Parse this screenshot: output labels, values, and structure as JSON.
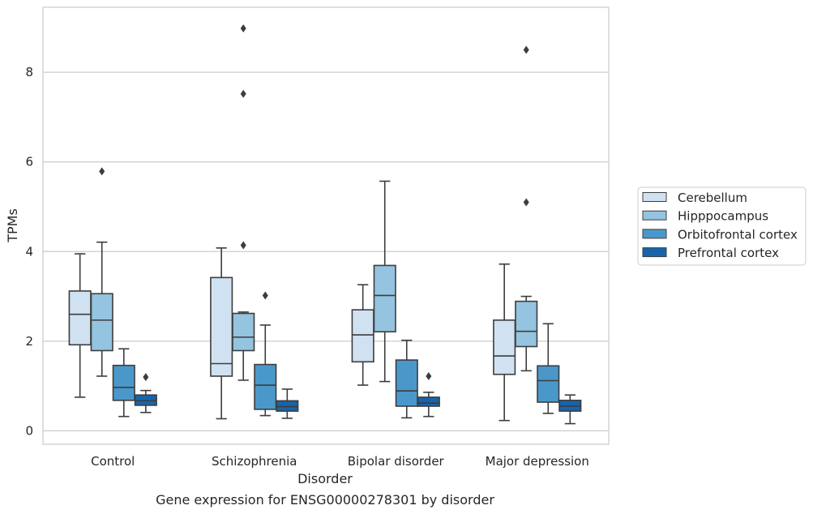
{
  "chart_data": {
    "type": "box",
    "xlabel": "Disorder",
    "ylabel": "TPMs",
    "caption": "Gene expression for ENSG00000278301 by disorder",
    "ylim": [
      -0.3,
      9.45
    ],
    "y_ticks": [
      "0",
      "2",
      "4",
      "6",
      "8"
    ],
    "y_tick_values": [
      0,
      2,
      4,
      6,
      8
    ],
    "grid": "horizontal",
    "legend_position": "right",
    "categories": [
      "Control",
      "Schizophrenia",
      "Bipolar disorder",
      "Major depression"
    ],
    "series": [
      {
        "name": "Cerebellum",
        "color": "#d0e1f2",
        "boxes": [
          {
            "whisker_low": 0.75,
            "q1": 1.92,
            "median": 2.6,
            "q3": 3.12,
            "whisker_high": 3.95,
            "outliers": []
          },
          {
            "whisker_low": 0.27,
            "q1": 1.22,
            "median": 1.5,
            "q3": 3.42,
            "whisker_high": 4.08,
            "outliers": []
          },
          {
            "whisker_low": 1.02,
            "q1": 1.54,
            "median": 2.14,
            "q3": 2.7,
            "whisker_high": 3.26,
            "outliers": []
          },
          {
            "whisker_low": 0.23,
            "q1": 1.26,
            "median": 1.67,
            "q3": 2.47,
            "whisker_high": 3.72,
            "outliers": []
          }
        ]
      },
      {
        "name": "Hipppocampus",
        "color": "#94c4df",
        "boxes": [
          {
            "whisker_low": 1.22,
            "q1": 1.79,
            "median": 2.47,
            "q3": 3.06,
            "whisker_high": 4.21,
            "outliers": [
              5.79
            ]
          },
          {
            "whisker_low": 1.13,
            "q1": 1.79,
            "median": 2.09,
            "q3": 2.62,
            "whisker_high": 2.65,
            "outliers": [
              4.14,
              7.52,
              8.98
            ]
          },
          {
            "whisker_low": 1.1,
            "q1": 2.21,
            "median": 3.02,
            "q3": 3.69,
            "whisker_high": 5.57,
            "outliers": []
          },
          {
            "whisker_low": 1.34,
            "q1": 1.88,
            "median": 2.22,
            "q3": 2.89,
            "whisker_high": 3.0,
            "outliers": [
              5.1,
              8.5
            ]
          }
        ]
      },
      {
        "name": "Orbitofrontal cortex",
        "color": "#4a98c9",
        "boxes": [
          {
            "whisker_low": 0.32,
            "q1": 0.68,
            "median": 0.97,
            "q3": 1.46,
            "whisker_high": 1.83,
            "outliers": []
          },
          {
            "whisker_low": 0.34,
            "q1": 0.48,
            "median": 1.02,
            "q3": 1.48,
            "whisker_high": 2.36,
            "outliers": [
              3.02
            ]
          },
          {
            "whisker_low": 0.29,
            "q1": 0.55,
            "median": 0.89,
            "q3": 1.58,
            "whisker_high": 2.02,
            "outliers": []
          },
          {
            "whisker_low": 0.39,
            "q1": 0.64,
            "median": 1.12,
            "q3": 1.45,
            "whisker_high": 2.39,
            "outliers": []
          }
        ]
      },
      {
        "name": "Prefrontal cortex",
        "color": "#1764ab",
        "boxes": [
          {
            "whisker_low": 0.41,
            "q1": 0.57,
            "median": 0.67,
            "q3": 0.8,
            "whisker_high": 0.9,
            "outliers": [
              1.2
            ]
          },
          {
            "whisker_low": 0.28,
            "q1": 0.44,
            "median": 0.54,
            "q3": 0.67,
            "whisker_high": 0.93,
            "outliers": []
          },
          {
            "whisker_low": 0.32,
            "q1": 0.55,
            "median": 0.62,
            "q3": 0.75,
            "whisker_high": 0.86,
            "outliers": [
              1.22
            ]
          },
          {
            "whisker_low": 0.16,
            "q1": 0.44,
            "median": 0.55,
            "q3": 0.68,
            "whisker_high": 0.8,
            "outliers": []
          }
        ]
      }
    ]
  }
}
